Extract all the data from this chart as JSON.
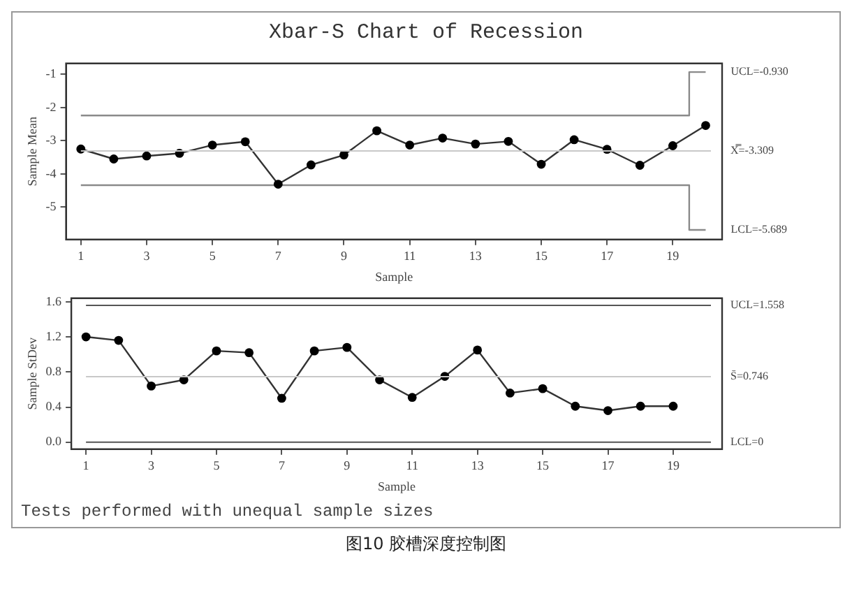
{
  "chart_data": [
    {
      "type": "line",
      "title": "Xbar-S Chart of Recession",
      "xlabel": "Sample",
      "ylabel": "Sample Mean",
      "x": [
        1,
        2,
        3,
        4,
        5,
        6,
        7,
        8,
        9,
        10,
        11,
        12,
        13,
        14,
        15,
        16,
        17,
        18,
        19,
        20
      ],
      "series": [
        {
          "color": "#333333",
          "marker": "circle",
          "values": [
            -3.25,
            -3.55,
            -3.46,
            -3.38,
            -3.13,
            -3.03,
            -4.31,
            -3.73,
            -3.43,
            -2.7,
            -3.13,
            -2.92,
            -3.1,
            -3.02,
            -3.71,
            -2.97,
            -3.26,
            -3.74,
            -3.15,
            -2.54
          ]
        },
        {
          "type": "step",
          "color": "#8a8a8a",
          "marker": "none",
          "values": [
            -2.24,
            -2.24,
            -2.24,
            -2.24,
            -2.24,
            -2.24,
            -2.24,
            -2.24,
            -2.24,
            -2.24,
            -2.24,
            -2.24,
            -2.24,
            -2.24,
            -2.24,
            -2.24,
            -2.24,
            -2.24,
            -2.24,
            -0.93
          ]
        },
        {
          "type": "step",
          "color": "#8a8a8a",
          "marker": "none",
          "values": [
            -4.34,
            -4.34,
            -4.34,
            -4.34,
            -4.34,
            -4.34,
            -4.34,
            -4.34,
            -4.34,
            -4.34,
            -4.34,
            -4.34,
            -4.34,
            -4.34,
            -4.34,
            -4.34,
            -4.34,
            -4.34,
            -4.34,
            -5.69
          ]
        }
      ],
      "xlim": [
        0.55,
        20.5
      ],
      "xticks": [
        1,
        3,
        5,
        7,
        9,
        11,
        13,
        15,
        17,
        19
      ],
      "ylim": [
        -5.98,
        -0.67
      ],
      "yticks": [
        -1,
        -2,
        -3,
        -4,
        -5
      ],
      "ref_lines": [
        {
          "axis": "y",
          "value": -3.309,
          "label": "X̿=-3.309",
          "color": "#c8c8c8"
        }
      ],
      "annotations": [
        {
          "text": "UCL=-0.930",
          "x": 20,
          "y": -0.93
        },
        {
          "text": "LCL=-5.689",
          "x": 20,
          "y": -5.689
        }
      ],
      "grid": false,
      "legend": false
    },
    {
      "type": "line",
      "xlabel": "Sample",
      "ylabel": "Sample StDev",
      "x": [
        1,
        2,
        3,
        4,
        5,
        6,
        7,
        8,
        9,
        10,
        11,
        12,
        13,
        14,
        15,
        16,
        17,
        18,
        19
      ],
      "series": [
        {
          "color": "#333333",
          "marker": "circle",
          "values": [
            1.2,
            1.16,
            0.64,
            0.71,
            1.04,
            1.02,
            0.5,
            1.04,
            1.08,
            0.71,
            0.51,
            0.75,
            1.05,
            0.56,
            0.61,
            0.41,
            0.36,
            0.41,
            0.41
          ]
        }
      ],
      "xlim": [
        0.55,
        20.5
      ],
      "xticks": [
        1,
        3,
        5,
        7,
        9,
        11,
        13,
        15,
        17,
        19
      ],
      "ylim": [
        -0.08,
        1.64
      ],
      "yticks": [
        {
          "value": 0,
          "label": "0.0"
        },
        {
          "value": 0.4,
          "label": "0.4"
        },
        {
          "value": 0.8,
          "label": "0.8"
        },
        {
          "value": 1.2,
          "label": "1.2"
        },
        {
          "value": 1.6,
          "label": "1.6"
        }
      ],
      "ref_lines": [
        {
          "axis": "y",
          "value": 1.558,
          "label": "UCL=1.558",
          "color": "#555555"
        },
        {
          "axis": "y",
          "value": 0.746,
          "label": "S̄=0.746",
          "color": "#c8c8c8"
        },
        {
          "axis": "y",
          "value": 0,
          "label": "LCL=0",
          "color": "#555555"
        }
      ],
      "annotations": [
        "Tests performed with unequal sample sizes",
        "图10 胶槽深度控制图"
      ],
      "grid": false,
      "legend": false
    }
  ]
}
